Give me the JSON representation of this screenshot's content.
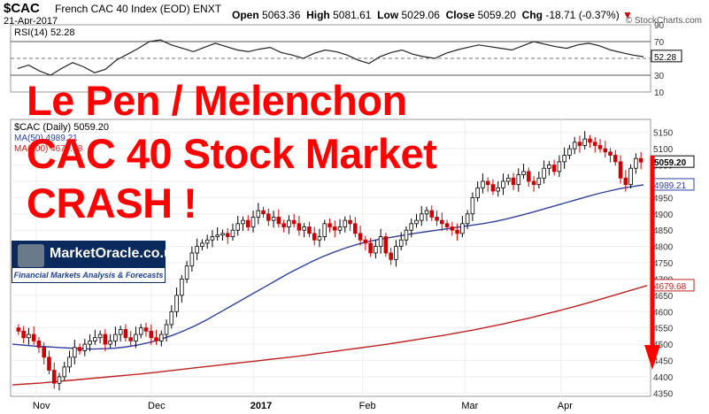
{
  "header": {
    "symbol": "$CAC",
    "name": "French CAC 40 Index (EOD)  ENXT",
    "date": "21-Apr-2017",
    "open_label": "Open",
    "open": "5063.36",
    "high_label": "High",
    "high": "5081.61",
    "low_label": "Low",
    "low": "5029.06",
    "close_label": "Close",
    "close": "5059.20",
    "chg_label": "Chg",
    "chg": "-18.71 (-0.37%)",
    "brand": "© StockCharts.com"
  },
  "headline": {
    "line1": "Le Pen / Melenchon",
    "line2": "CAC 40 Stock Market",
    "line3": "CRASH !"
  },
  "logo": {
    "title": "MarketOracle.co.uk",
    "subtitle": "Financial Markets Analysis & Forecasts"
  },
  "chart_data": [
    {
      "type": "line",
      "title": "RSI(14) 52.28",
      "y_ticks": [
        90,
        70,
        50,
        30,
        10
      ],
      "ylim": [
        10,
        90
      ],
      "reference_lines": [
        70,
        30
      ],
      "last_value_label": "52.28",
      "values": [
        38,
        42,
        35,
        30,
        38,
        45,
        40,
        33,
        37,
        48,
        55,
        62,
        70,
        72,
        66,
        62,
        58,
        63,
        68,
        64,
        60,
        58,
        61,
        63,
        57,
        54,
        50,
        56,
        60,
        58,
        54,
        48,
        44,
        52,
        57,
        60,
        55,
        52,
        50,
        56,
        60,
        63,
        66,
        64,
        62,
        60,
        65,
        70,
        67,
        64,
        62,
        66,
        68,
        65,
        60,
        57,
        54,
        52
      ]
    },
    {
      "type": "candlestick",
      "title": "$CAC (Daily) 5059.20",
      "legend": [
        {
          "label": "MA(50) 4989.21",
          "color": "#3040a0"
        },
        {
          "label": "MA(200) 4679.68",
          "color": "#c02020"
        }
      ],
      "x_tick_labels": [
        "Nov",
        "Dec",
        "2017",
        "Feb",
        "Mar",
        "Apr"
      ],
      "y_ticks": [
        5150,
        5100,
        5050,
        5000,
        4950,
        4900,
        4850,
        4800,
        4750,
        4700,
        4650,
        4600,
        4550,
        4500,
        4450,
        4400,
        4350
      ],
      "ylim": [
        4340,
        5190
      ],
      "price_tags": [
        {
          "text": "5059.20",
          "value": 5059.2,
          "color": "#000"
        },
        {
          "text": "4989.21",
          "value": 4989.21,
          "color": "#3040a0"
        },
        {
          "text": "4679.68",
          "value": 4679.68,
          "color": "#c02020"
        }
      ],
      "closes": [
        4540,
        4520,
        4530,
        4510,
        4490,
        4460,
        4420,
        4380,
        4400,
        4430,
        4460,
        4490,
        4480,
        4500,
        4510,
        4520,
        4530,
        4500,
        4510,
        4530,
        4545,
        4520,
        4510,
        4530,
        4550,
        4540,
        4520,
        4510,
        4530,
        4560,
        4600,
        4650,
        4700,
        4740,
        4780,
        4800,
        4810,
        4820,
        4830,
        4835,
        4840,
        4830,
        4850,
        4870,
        4880,
        4860,
        4890,
        4910,
        4900,
        4880,
        4890,
        4870,
        4860,
        4880,
        4870,
        4850,
        4860,
        4840,
        4820,
        4830,
        4870,
        4860,
        4850,
        4860,
        4880,
        4870,
        4840,
        4820,
        4810,
        4780,
        4800,
        4830,
        4780,
        4760,
        4800,
        4820,
        4850,
        4870,
        4880,
        4900,
        4910,
        4890,
        4880,
        4870,
        4860,
        4850,
        4840,
        4870,
        4900,
        4950,
        4980,
        5000,
        4990,
        4970,
        4980,
        5000,
        5010,
        4990,
        5020,
        5030,
        5000,
        4990,
        5010,
        5040,
        5050,
        5030,
        5060,
        5080,
        5100,
        5120,
        5110,
        5130,
        5120,
        5110,
        5100,
        5090,
        5080,
        5060,
        5010,
        4990,
        5040,
        5070,
        5059
      ],
      "ma50": [
        4500,
        4497,
        4494,
        4492,
        4490,
        4488,
        4486,
        4485,
        4486,
        4488,
        4492,
        4498,
        4506,
        4516,
        4528,
        4542,
        4558,
        4576,
        4596,
        4616,
        4636,
        4656,
        4676,
        4696,
        4716,
        4734,
        4752,
        4768,
        4782,
        4795,
        4806,
        4815,
        4822,
        4828,
        4834,
        4840,
        4845,
        4850,
        4855,
        4860,
        4865,
        4870,
        4876,
        4884,
        4893,
        4902,
        4912,
        4922,
        4932,
        4942,
        4952,
        4962,
        4970,
        4978,
        4984,
        4989
      ],
      "ma200": [
        4375,
        4378,
        4381,
        4385,
        4389,
        4393,
        4397,
        4401,
        4405,
        4409,
        4414,
        4419,
        4424,
        4429,
        4434,
        4439,
        4444,
        4449,
        4454,
        4459,
        4464,
        4470,
        4476,
        4482,
        4488,
        4494,
        4500,
        4507,
        4514,
        4521,
        4528,
        4536,
        4544,
        4553,
        4562,
        4572,
        4582,
        4593,
        4604,
        4616,
        4628,
        4641,
        4654,
        4667,
        4680
      ]
    }
  ]
}
